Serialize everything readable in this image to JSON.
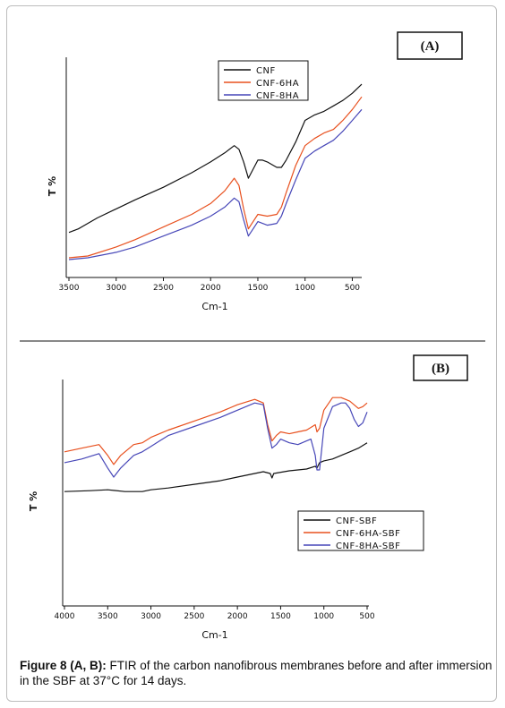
{
  "caption": {
    "label": "Figure 8 (A, B):",
    "text": "FTIR of the carbon nanofibrous membranes before and after immersion in the SBF at 37°C for 14 days."
  },
  "colors": {
    "black": "#111111",
    "red": "#e8501e",
    "blue": "#4747b8"
  },
  "chart_data": [
    {
      "type": "line",
      "panel_label": "(A)",
      "xlabel": "Cm-1",
      "ylabel": "T %",
      "xlim": [
        3500,
        400
      ],
      "ylim": [
        0,
        100
      ],
      "x_reversed": true,
      "xticks": [
        3500,
        3000,
        2500,
        2000,
        1500,
        1000,
        500
      ],
      "legend_position": "top-center",
      "series": [
        {
          "name": "CNF",
          "color": "#111111",
          "x": [
            3500,
            3400,
            3200,
            3000,
            2800,
            2500,
            2200,
            2000,
            1850,
            1750,
            1700,
            1650,
            1600,
            1550,
            1500,
            1450,
            1400,
            1300,
            1250,
            1200,
            1100,
            1000,
            900,
            800,
            700,
            600,
            500,
            400
          ],
          "y": [
            15,
            17,
            23,
            28,
            33,
            40,
            48,
            54,
            59,
            63,
            61,
            54,
            45,
            50,
            55,
            55,
            54,
            51,
            51,
            55,
            65,
            77,
            80,
            82,
            85,
            88,
            92,
            97
          ]
        },
        {
          "name": "CNF-6HA",
          "color": "#e8501e",
          "x": [
            3500,
            3300,
            3000,
            2800,
            2500,
            2200,
            2000,
            1850,
            1750,
            1700,
            1650,
            1600,
            1550,
            1500,
            1400,
            1300,
            1250,
            1200,
            1100,
            1000,
            900,
            800,
            700,
            600,
            500,
            400
          ],
          "y": [
            1,
            2,
            7,
            11,
            18,
            25,
            31,
            38,
            45,
            41,
            28,
            17,
            21,
            25,
            24,
            25,
            29,
            37,
            52,
            63,
            67,
            70,
            72,
            77,
            83,
            90
          ]
        },
        {
          "name": "CNF-8HA",
          "color": "#4747b8",
          "x": [
            3500,
            3300,
            3000,
            2800,
            2500,
            2200,
            2000,
            1850,
            1750,
            1700,
            1650,
            1600,
            1550,
            1500,
            1400,
            1300,
            1250,
            1200,
            1100,
            1000,
            900,
            800,
            700,
            600,
            500,
            400
          ],
          "y": [
            0,
            1,
            4,
            7,
            13,
            19,
            24,
            29,
            34,
            32,
            22,
            13,
            17,
            21,
            19,
            20,
            24,
            31,
            44,
            56,
            60,
            63,
            66,
            71,
            77,
            83
          ]
        }
      ]
    },
    {
      "type": "line",
      "panel_label": "(B)",
      "xlabel": "Cm-1",
      "ylabel": "T %",
      "xlim": [
        4000,
        500
      ],
      "ylim": [
        0,
        100
      ],
      "x_reversed": true,
      "xticks": [
        4000,
        3500,
        3000,
        2500,
        2000,
        1500,
        1000,
        500
      ],
      "legend_position": "bottom-right",
      "series": [
        {
          "name": "CNF-SBF",
          "color": "#111111",
          "x": [
            4000,
            3700,
            3500,
            3300,
            3100,
            3000,
            2800,
            2500,
            2200,
            2000,
            1700,
            1620,
            1600,
            1580,
            1400,
            1200,
            1100,
            1080,
            1050,
            1000,
            900,
            800,
            700,
            600,
            500
          ],
          "y": [
            40,
            40.5,
            41,
            40,
            40,
            41,
            42,
            44,
            46,
            48,
            51,
            50,
            47.5,
            50,
            51.5,
            52.5,
            54,
            53,
            56,
            57,
            58,
            60,
            62,
            64,
            67
          ]
        },
        {
          "name": "CNF-6HA-SBF",
          "color": "#e8501e",
          "x": [
            4000,
            3800,
            3600,
            3500,
            3430,
            3350,
            3200,
            3100,
            3000,
            2900,
            2800,
            2500,
            2200,
            2000,
            1800,
            1700,
            1650,
            1600,
            1550,
            1500,
            1400,
            1300,
            1200,
            1100,
            1080,
            1050,
            1000,
            900,
            800,
            700,
            600,
            550,
            500
          ],
          "y": [
            62,
            64,
            66,
            60,
            55,
            60,
            66,
            67,
            70,
            72,
            74,
            79,
            84,
            88,
            91,
            89,
            77,
            68,
            71,
            73,
            72,
            73,
            74,
            77,
            73,
            75,
            85,
            92,
            92,
            90,
            86,
            87,
            89
          ]
        },
        {
          "name": "CNF-8HA-SBF",
          "color": "#4747b8",
          "x": [
            4000,
            3800,
            3600,
            3500,
            3430,
            3350,
            3200,
            3100,
            3000,
            2900,
            2800,
            2500,
            2200,
            2000,
            1800,
            1700,
            1650,
            1600,
            1550,
            1500,
            1400,
            1300,
            1200,
            1150,
            1100,
            1080,
            1050,
            1000,
            900,
            800,
            750,
            700,
            650,
            600,
            550,
            500
          ],
          "y": [
            56,
            58,
            61,
            53,
            48,
            53,
            60,
            62,
            65,
            68,
            71,
            76,
            81,
            85,
            89,
            88,
            75,
            64,
            66,
            69,
            67,
            66,
            68,
            69,
            60,
            52,
            52,
            75,
            87,
            89,
            89,
            86,
            80,
            76,
            78,
            84
          ]
        }
      ]
    }
  ]
}
